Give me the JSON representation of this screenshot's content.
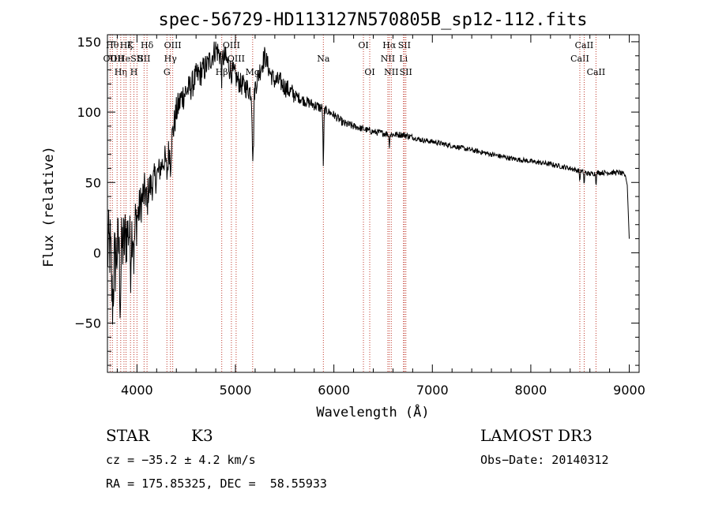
{
  "chart_data": {
    "type": "line",
    "title": "spec-56729-HD113127N570805B_sp12-112.fits",
    "xlabel": "Wavelength (Å)",
    "ylabel": "Flux (relative)",
    "xlim": [
      3700,
      9100
    ],
    "ylim": [
      -85,
      155
    ],
    "xticks": [
      4000,
      5000,
      6000,
      7000,
      8000,
      9000
    ],
    "yticks": [
      -50,
      0,
      50,
      100,
      150
    ],
    "anchors": [
      [
        3700,
        0
      ],
      [
        3740,
        10
      ],
      [
        3780,
        -5
      ],
      [
        3820,
        10
      ],
      [
        3860,
        5
      ],
      [
        3900,
        15
      ],
      [
        3940,
        15
      ],
      [
        3980,
        20
      ],
      [
        4020,
        30
      ],
      [
        4060,
        40
      ],
      [
        4100,
        45
      ],
      [
        4150,
        48
      ],
      [
        4200,
        55
      ],
      [
        4250,
        62
      ],
      [
        4300,
        70
      ],
      [
        4350,
        80
      ],
      [
        4400,
        100
      ],
      [
        4450,
        110
      ],
      [
        4500,
        115
      ],
      [
        4550,
        118
      ],
      [
        4600,
        125
      ],
      [
        4650,
        128
      ],
      [
        4700,
        132
      ],
      [
        4750,
        138
      ],
      [
        4800,
        145
      ],
      [
        4850,
        140
      ],
      [
        4900,
        138
      ],
      [
        4950,
        130
      ],
      [
        5000,
        125
      ],
      [
        5050,
        120
      ],
      [
        5100,
        118
      ],
      [
        5150,
        115
      ],
      [
        5200,
        118
      ],
      [
        5250,
        130
      ],
      [
        5300,
        140
      ],
      [
        5350,
        128
      ],
      [
        5400,
        122
      ],
      [
        5450,
        122
      ],
      [
        5500,
        118
      ],
      [
        5600,
        112
      ],
      [
        5700,
        108
      ],
      [
        5800,
        105
      ],
      [
        5900,
        102
      ],
      [
        6000,
        98
      ],
      [
        6100,
        92
      ],
      [
        6200,
        90
      ],
      [
        6300,
        88
      ],
      [
        6400,
        86
      ],
      [
        6500,
        85
      ],
      [
        6600,
        84
      ],
      [
        6700,
        84
      ],
      [
        6800,
        82
      ],
      [
        6900,
        80
      ],
      [
        7000,
        79
      ],
      [
        7200,
        76
      ],
      [
        7400,
        73
      ],
      [
        7600,
        70
      ],
      [
        7800,
        67
      ],
      [
        8000,
        65
      ],
      [
        8200,
        63
      ],
      [
        8400,
        60
      ],
      [
        8500,
        58
      ],
      [
        8600,
        56
      ],
      [
        8700,
        57
      ],
      [
        8800,
        57
      ],
      [
        8900,
        57
      ],
      [
        8960,
        55
      ],
      [
        8980,
        48
      ],
      [
        9000,
        10
      ]
    ],
    "noise_bands": [
      [
        3700,
        3800,
        28
      ],
      [
        3800,
        3900,
        25
      ],
      [
        3900,
        4000,
        20
      ],
      [
        4000,
        4100,
        15
      ],
      [
        4100,
        4200,
        12
      ],
      [
        4200,
        4300,
        10
      ],
      [
        4300,
        4500,
        11
      ],
      [
        4500,
        4700,
        10
      ],
      [
        4700,
        5000,
        9
      ],
      [
        5000,
        5300,
        8
      ],
      [
        5300,
        5600,
        7
      ],
      [
        5600,
        5900,
        4
      ],
      [
        5900,
        6200,
        3
      ],
      [
        6200,
        6800,
        2.4
      ],
      [
        6800,
        8960,
        1.8
      ]
    ],
    "absorption_dips": [
      [
        3750,
        15,
        40
      ],
      [
        3830,
        10,
        40
      ],
      [
        3935,
        6,
        25
      ],
      [
        3970,
        6,
        25
      ],
      [
        4102,
        8,
        15
      ],
      [
        4305,
        12,
        15
      ],
      [
        4340,
        8,
        15
      ],
      [
        4861,
        6,
        15
      ],
      [
        5178,
        10,
        50
      ],
      [
        5893,
        6,
        40
      ],
      [
        6563,
        5,
        8
      ],
      [
        8498,
        4,
        8
      ],
      [
        8542,
        4,
        10
      ],
      [
        8662,
        4,
        8
      ]
    ],
    "line_markers": [
      {
        "x": 3727,
        "label": "OII",
        "row": 2
      },
      {
        "x": 3750,
        "label": "Hθ",
        "row": 1
      },
      {
        "x": 3798,
        "label": "OII",
        "row": 2
      },
      {
        "x": 3835,
        "label": "Hη",
        "row": 3
      },
      {
        "x": 3868,
        "label": "He",
        "row": 2
      },
      {
        "x": 3889,
        "label": "Hζ",
        "row": 1
      },
      {
        "x": 3934,
        "label": "K",
        "row": 1
      },
      {
        "x": 3969,
        "label": "H",
        "row": 3
      },
      {
        "x": 4000,
        "label": "SII",
        "row": 2
      },
      {
        "x": 4072,
        "label": "SII",
        "row": 2
      },
      {
        "x": 4102,
        "label": "Hδ",
        "row": 1
      },
      {
        "x": 4304,
        "label": "G",
        "row": 3
      },
      {
        "x": 4340,
        "label": "Hγ",
        "row": 2
      },
      {
        "x": 4363,
        "label": "OIII",
        "row": 1
      },
      {
        "x": 4861,
        "label": "Hβ",
        "row": 3
      },
      {
        "x": 4959,
        "label": "OIII",
        "row": 1
      },
      {
        "x": 5007,
        "label": "OIII",
        "row": 2
      },
      {
        "x": 5175,
        "label": "Mg",
        "row": 3
      },
      {
        "x": 5893,
        "label": "Na",
        "row": 2
      },
      {
        "x": 6300,
        "label": "OI",
        "row": 1
      },
      {
        "x": 6364,
        "label": "OI",
        "row": 3
      },
      {
        "x": 6548,
        "label": "NII",
        "row": 2
      },
      {
        "x": 6563,
        "label": "Hα",
        "row": 1
      },
      {
        "x": 6583,
        "label": "NII",
        "row": 3
      },
      {
        "x": 6707,
        "label": "Li",
        "row": 2
      },
      {
        "x": 6716,
        "label": "SII",
        "row": 1
      },
      {
        "x": 6731,
        "label": "SII",
        "row": 3
      },
      {
        "x": 8498,
        "label": "CaII",
        "row": 2
      },
      {
        "x": 8542,
        "label": "CaII",
        "row": 1
      },
      {
        "x": 8662,
        "label": "CaII",
        "row": 3
      }
    ]
  },
  "info": {
    "object_class": "STAR",
    "subclass": "K3",
    "survey": "LAMOST DR3",
    "cz": "cz = −35.2 ± 4.2 km/s",
    "obs_date": "Obs−Date: 20140312",
    "coords": "RA = 175.85325, DEC =  58.55933"
  },
  "colors": {
    "spectrum": "#000000",
    "line_marker": "#c0392b",
    "axes": "#000000"
  }
}
